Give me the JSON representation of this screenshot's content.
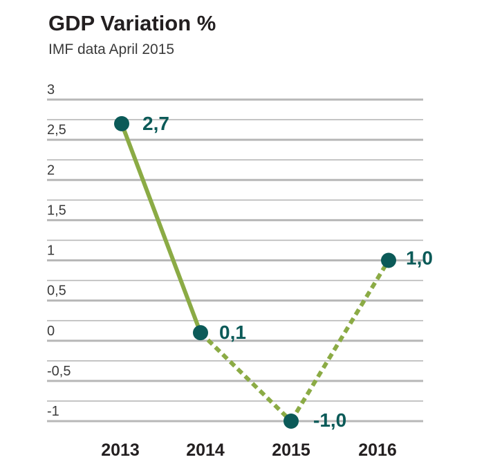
{
  "chart_data": {
    "type": "line",
    "title": "GDP Variation %",
    "subtitle": "IMF data April 2015",
    "categories": [
      "2013",
      "2014",
      "2015",
      "2016"
    ],
    "series": [
      {
        "values": [
          2.7,
          0.1,
          -1.0,
          1.0
        ]
      }
    ],
    "segment_styles": [
      "solid",
      "dotted",
      "dotted"
    ],
    "data_labels": [
      "2,7",
      "0,1",
      "-1,0",
      "1,0"
    ],
    "y_ticks": [
      "3",
      "2,5",
      "2",
      "1,5",
      "1",
      "0,5",
      "0",
      "-0,5",
      "-1"
    ],
    "ylim": [
      -1.1,
      3
    ],
    "grid": true,
    "colors": {
      "line": "#8bab45",
      "marker": "#0b5a58",
      "grid": "#b7b7b7",
      "label": "#0b5a58"
    }
  }
}
